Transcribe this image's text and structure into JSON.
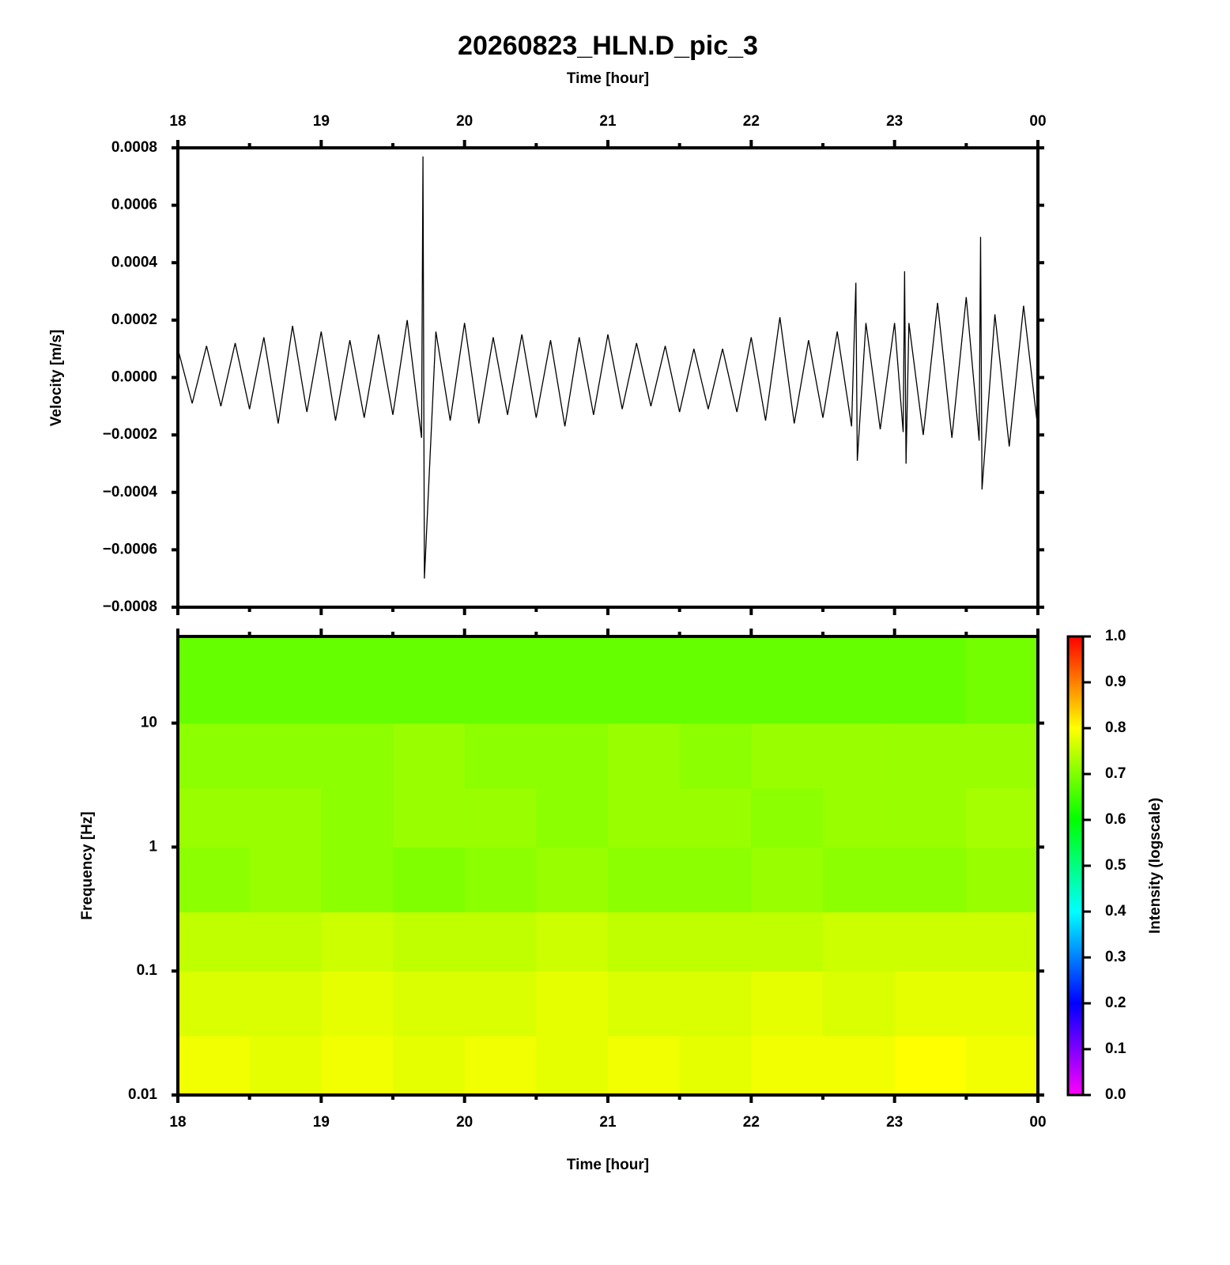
{
  "chart_data": [
    {
      "type": "line",
      "title": "20260823_HLN.D_pic_3",
      "xlabel": "Time [hour]",
      "ylabel": "Velocity [m/s]",
      "color": "#000000",
      "xlim": [
        18,
        24
      ],
      "xticks": [
        18,
        19,
        20,
        21,
        22,
        23,
        {
          "value": 24,
          "label": "00"
        }
      ],
      "xminorticks": [
        18.5,
        19.5,
        20.5,
        21.5,
        22.5,
        23.5
      ],
      "ylim": [
        -0.0008,
        0.0008
      ],
      "yticks": [
        {
          "value": -0.0008,
          "label": "−0.0008"
        },
        {
          "value": -0.0006,
          "label": "−0.0006"
        },
        {
          "value": -0.0004,
          "label": "−0.0004"
        },
        {
          "value": -0.0002,
          "label": "−0.0002"
        },
        {
          "value": 0,
          "label": "0.0000"
        },
        0.0002,
        0.0004,
        0.0006,
        0.0008
      ],
      "x": [
        18.0,
        18.1,
        18.2,
        18.3,
        18.4,
        18.5,
        18.6,
        18.7,
        18.8,
        18.9,
        19.0,
        19.1,
        19.2,
        19.3,
        19.4,
        19.5,
        19.6,
        19.7,
        19.71,
        19.72,
        19.8,
        19.9,
        20.0,
        20.1,
        20.2,
        20.3,
        20.4,
        20.5,
        20.6,
        20.7,
        20.8,
        20.9,
        21.0,
        21.1,
        21.2,
        21.3,
        21.4,
        21.5,
        21.6,
        21.7,
        21.8,
        21.9,
        22.0,
        22.1,
        22.2,
        22.3,
        22.4,
        22.5,
        22.6,
        22.7,
        22.73,
        22.74,
        22.8,
        22.9,
        23.0,
        23.06,
        23.07,
        23.08,
        23.1,
        23.2,
        23.3,
        23.4,
        23.5,
        23.59,
        23.6,
        23.61,
        23.7,
        23.8,
        23.9,
        24.0
      ],
      "values": [
        0.0001,
        -9e-05,
        0.00011,
        -0.0001,
        0.00012,
        -0.00011,
        0.00014,
        -0.00016,
        0.00018,
        -0.00012,
        0.00016,
        -0.00015,
        0.00013,
        -0.00014,
        0.00015,
        -0.00013,
        0.0002,
        -0.00021,
        0.00077,
        -0.0007,
        0.00016,
        -0.00015,
        0.00019,
        -0.00016,
        0.00014,
        -0.00013,
        0.00015,
        -0.00014,
        0.00013,
        -0.00017,
        0.00014,
        -0.00013,
        0.00015,
        -0.00011,
        0.00012,
        -0.0001,
        0.00011,
        -0.00012,
        0.0001,
        -0.00011,
        0.0001,
        -0.00012,
        0.00014,
        -0.00015,
        0.00021,
        -0.00016,
        0.00013,
        -0.00014,
        0.00016,
        -0.00017,
        0.00033,
        -0.00029,
        0.00019,
        -0.00018,
        0.00019,
        -0.00019,
        0.00037,
        -0.0003,
        0.00019,
        -0.0002,
        0.00026,
        -0.00021,
        0.00028,
        -0.00022,
        0.00049,
        -0.00039,
        0.00022,
        -0.00024,
        0.00025,
        -0.00018
      ]
    },
    {
      "type": "heatmap",
      "xlabel": "Time [hour]",
      "ylabel": "Frequency [Hz]",
      "xlim": [
        18,
        24
      ],
      "xticks": [
        18,
        19,
        20,
        21,
        22,
        23,
        {
          "value": 24,
          "label": "00"
        }
      ],
      "xminorticks": [
        18.5,
        19.5,
        20.5,
        21.5,
        22.5,
        23.5
      ],
      "ylog": true,
      "ylim": [
        0.01,
        50
      ],
      "yticks": [
        0.01,
        0.1,
        1,
        10
      ],
      "x_edges": [
        18,
        18.5,
        19,
        19.5,
        20,
        20.5,
        21,
        21.5,
        22,
        22.5,
        23,
        23.5,
        24
      ],
      "y_edges": [
        0.01,
        0.03,
        0.1,
        0.3,
        1,
        3,
        10,
        50
      ],
      "z": [
        [
          0.79,
          0.78,
          0.79,
          0.78,
          0.79,
          0.78,
          0.79,
          0.78,
          0.79,
          0.79,
          0.8,
          0.79
        ],
        [
          0.77,
          0.77,
          0.78,
          0.77,
          0.77,
          0.78,
          0.77,
          0.77,
          0.78,
          0.77,
          0.78,
          0.78
        ],
        [
          0.75,
          0.75,
          0.76,
          0.75,
          0.75,
          0.76,
          0.75,
          0.75,
          0.75,
          0.76,
          0.76,
          0.76
        ],
        [
          0.71,
          0.72,
          0.71,
          0.7,
          0.71,
          0.72,
          0.71,
          0.71,
          0.72,
          0.71,
          0.71,
          0.72
        ],
        [
          0.72,
          0.72,
          0.71,
          0.72,
          0.72,
          0.71,
          0.72,
          0.72,
          0.71,
          0.72,
          0.72,
          0.73
        ],
        [
          0.71,
          0.71,
          0.71,
          0.72,
          0.71,
          0.71,
          0.72,
          0.71,
          0.72,
          0.72,
          0.72,
          0.72
        ],
        [
          0.68,
          0.68,
          0.68,
          0.68,
          0.68,
          0.68,
          0.68,
          0.68,
          0.68,
          0.68,
          0.68,
          0.69
        ]
      ],
      "colorbar": {
        "label": "Intensity (logscale)",
        "lim": [
          0,
          1
        ],
        "ticks": [
          {
            "value": 0,
            "label": "0.0"
          },
          0.1,
          0.2,
          0.3,
          0.4,
          0.5,
          0.6,
          0.7,
          0.8,
          0.9,
          {
            "value": 1,
            "label": "1.0"
          }
        ],
        "colors": [
          "#ff00ff",
          "#0000ff",
          "#00ffff",
          "#00ff00",
          "#ffff00",
          "#ff0000"
        ]
      }
    }
  ]
}
